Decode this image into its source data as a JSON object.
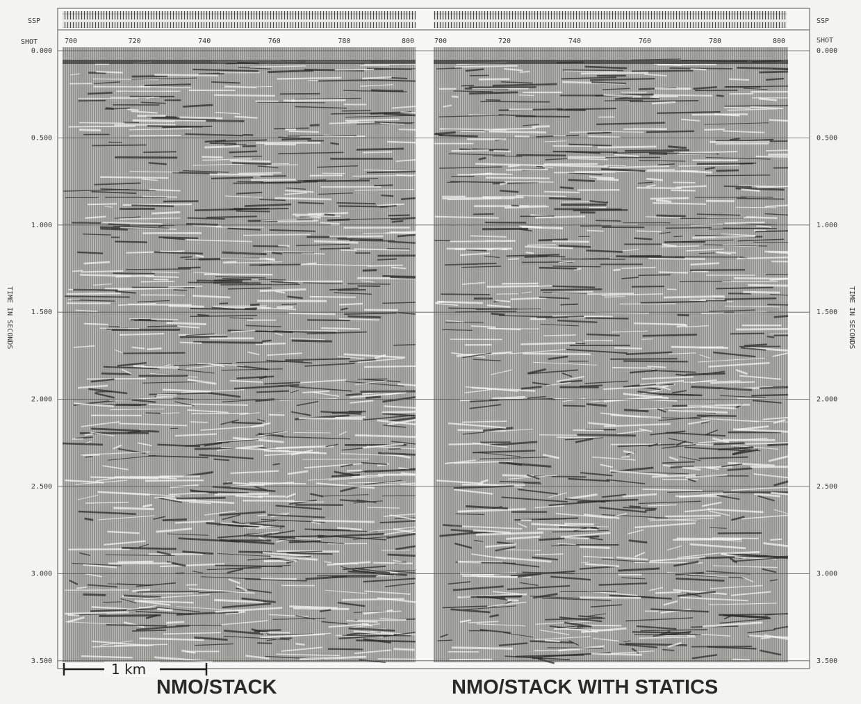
{
  "left_axis": {
    "ssp": "SSP",
    "shot": "SHOT",
    "axis_title": "TIME IN SECONDS",
    "time_labels": [
      "0.000",
      "0.500",
      "1.000",
      "1.500",
      "2.000",
      "2.500",
      "3.000",
      "3.500"
    ]
  },
  "right_axis": {
    "ssp": "SSP",
    "shot": "SHOT",
    "axis_title": "TIME IN SECONDS",
    "time_labels": [
      "0.000",
      "0.500",
      "1.000",
      "1.500",
      "2.000",
      "2.500",
      "3.000",
      "3.500"
    ]
  },
  "panels": [
    {
      "title": "NMO/STACK",
      "shot_labels": [
        "700",
        "720",
        "740",
        "760",
        "780",
        "800"
      ]
    },
    {
      "title": "NMO/STACK WITH STATICS",
      "shot_labels": [
        "700",
        "720",
        "740",
        "760",
        "780",
        "800"
      ]
    }
  ],
  "scale_bar": "1 km"
}
